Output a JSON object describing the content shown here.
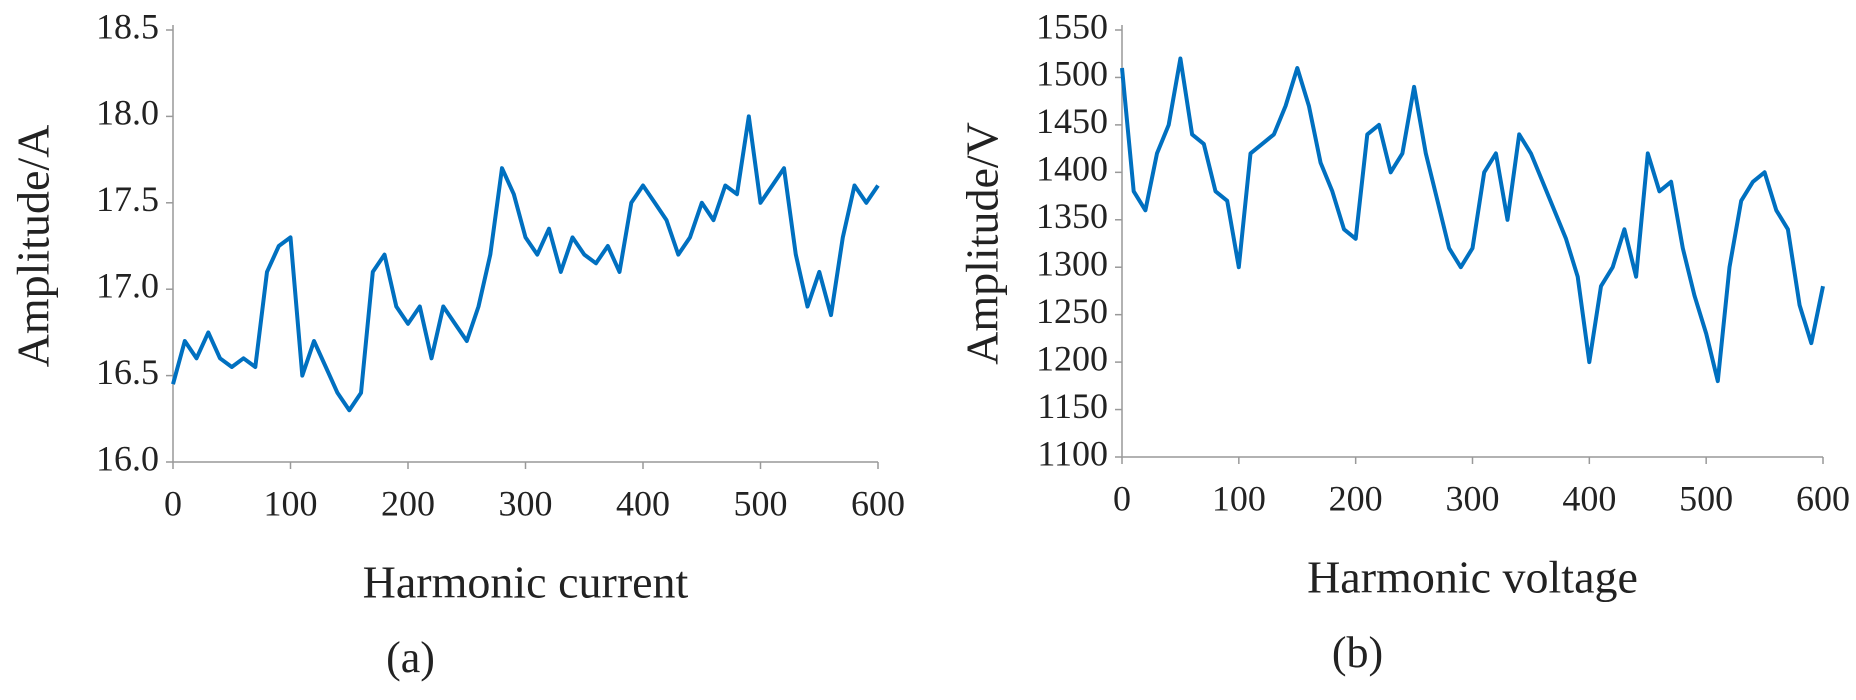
{
  "chart_data": [
    {
      "type": "line",
      "xlabel": "Harmonic current",
      "ylabel": "Amplitude/A",
      "label": "(a)",
      "x": [
        0,
        10,
        20,
        30,
        40,
        50,
        60,
        70,
        80,
        90,
        100,
        110,
        120,
        130,
        140,
        150,
        160,
        170,
        180,
        190,
        200,
        210,
        220,
        230,
        240,
        250,
        260,
        270,
        280,
        290,
        300,
        310,
        320,
        330,
        340,
        350,
        360,
        370,
        380,
        390,
        400,
        410,
        420,
        430,
        440,
        450,
        460,
        470,
        480,
        490,
        500,
        510,
        520,
        530,
        540,
        550,
        560,
        570,
        580,
        590,
        600
      ],
      "series": [
        {
          "name": "Harmonic current",
          "color": "#0070c0",
          "values": [
            16.45,
            16.7,
            16.6,
            16.75,
            16.6,
            16.55,
            16.6,
            16.55,
            17.1,
            17.25,
            17.3,
            16.5,
            16.7,
            16.55,
            16.4,
            16.3,
            16.4,
            17.1,
            17.2,
            16.9,
            16.8,
            16.9,
            16.6,
            16.9,
            16.8,
            16.7,
            16.9,
            17.2,
            17.7,
            17.55,
            17.3,
            17.2,
            17.35,
            17.1,
            17.3,
            17.2,
            17.15,
            17.25,
            17.1,
            17.5,
            17.6,
            17.5,
            17.4,
            17.2,
            17.3,
            17.5,
            17.4,
            17.6,
            17.55,
            18.0,
            17.5,
            17.6,
            17.7,
            17.2,
            16.9,
            17.1,
            16.85,
            17.3,
            17.6,
            17.5,
            17.6
          ]
        }
      ],
      "xlim": [
        0,
        600
      ],
      "xticks": [
        0,
        100,
        200,
        300,
        400,
        500,
        600
      ],
      "ylim": [
        16,
        18.5
      ],
      "yticks": [
        {
          "value": 16,
          "label": "16.0"
        },
        16.5,
        {
          "value": 17,
          "label": "17.0"
        },
        17.5,
        {
          "value": 18,
          "label": "18.0"
        },
        18.5
      ]
    },
    {
      "type": "line",
      "xlabel": "Harmonic voltage",
      "ylabel": "Amplitude/V",
      "label": "(b)",
      "x": [
        0,
        10,
        20,
        30,
        40,
        50,
        60,
        70,
        80,
        90,
        100,
        110,
        120,
        130,
        140,
        150,
        160,
        170,
        180,
        190,
        200,
        210,
        220,
        230,
        240,
        250,
        260,
        270,
        280,
        290,
        300,
        310,
        320,
        330,
        340,
        350,
        360,
        370,
        380,
        390,
        400,
        410,
        420,
        430,
        440,
        450,
        460,
        470,
        480,
        490,
        500,
        510,
        520,
        530,
        540,
        550,
        560,
        570,
        580,
        590,
        600
      ],
      "series": [
        {
          "name": "Harmonic voltage",
          "color": "#0070c0",
          "values": [
            1510,
            1380,
            1360,
            1420,
            1450,
            1520,
            1440,
            1430,
            1380,
            1370,
            1300,
            1420,
            1430,
            1440,
            1470,
            1510,
            1470,
            1410,
            1380,
            1340,
            1330,
            1440,
            1450,
            1400,
            1420,
            1490,
            1420,
            1370,
            1320,
            1300,
            1320,
            1400,
            1420,
            1350,
            1440,
            1420,
            1390,
            1360,
            1330,
            1290,
            1200,
            1280,
            1300,
            1340,
            1290,
            1420,
            1380,
            1390,
            1320,
            1270,
            1230,
            1180,
            1300,
            1370,
            1390,
            1400,
            1360,
            1340,
            1260,
            1220,
            1280
          ]
        }
      ],
      "xlim": [
        0,
        600
      ],
      "xticks": [
        0,
        100,
        200,
        300,
        400,
        500,
        600
      ],
      "ylim": [
        1100,
        1550
      ],
      "yticks": [
        1100,
        1150,
        1200,
        1250,
        1300,
        1350,
        1400,
        1450,
        1500,
        1550
      ]
    }
  ]
}
